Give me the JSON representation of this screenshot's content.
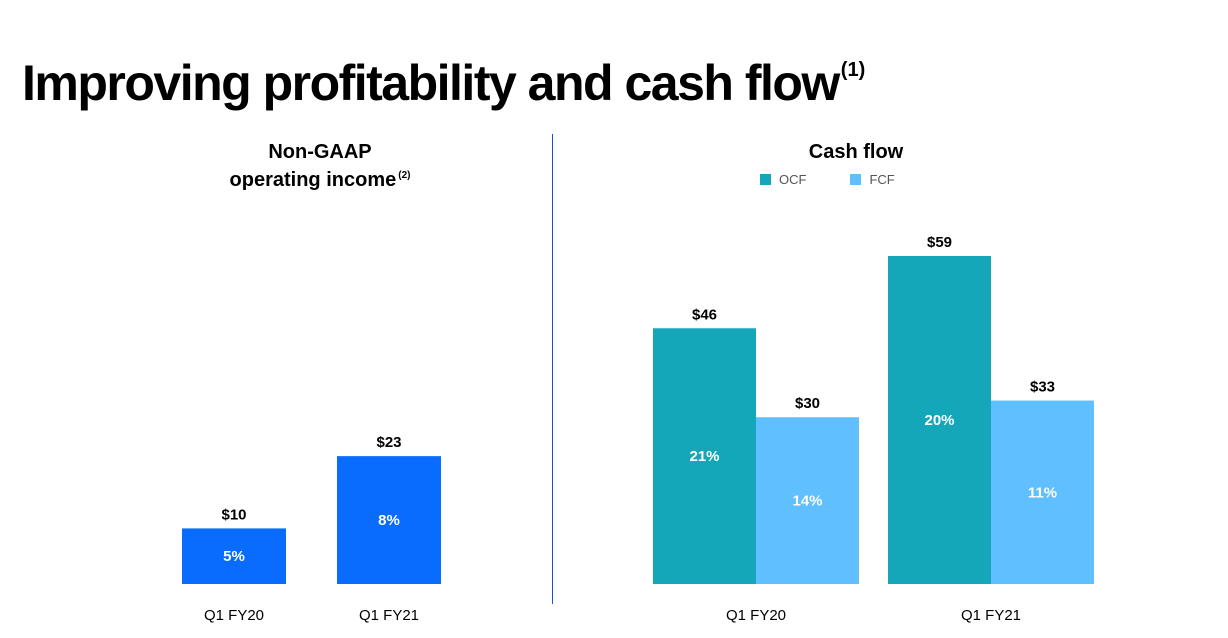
{
  "page": {
    "title": "Improving profitability and cash flow",
    "title_note": "(1)"
  },
  "chart_data": [
    {
      "type": "bar",
      "title_line1": "Non-GAAP",
      "title_line2": "operating income",
      "title_note": "(2)",
      "categories": [
        "Q1 FY20",
        "Q1 FY21"
      ],
      "series": [
        {
          "values": [
            10,
            23
          ],
          "value_labels": [
            "$10",
            "$23"
          ],
          "inner_labels": [
            "5%",
            "8%"
          ],
          "color": "#0a6cff"
        }
      ],
      "ylim": [
        0,
        60
      ]
    },
    {
      "type": "bar",
      "title": "Cash flow",
      "legend_position": "top",
      "categories": [
        "Q1 FY20",
        "Q1 FY21"
      ],
      "series": [
        {
          "name": "OCF",
          "values": [
            46,
            59
          ],
          "value_labels": [
            "$46",
            "$59"
          ],
          "inner_labels": [
            "21%",
            "20%"
          ],
          "color": "#13a7b9"
        },
        {
          "name": "FCF",
          "values": [
            30,
            33
          ],
          "value_labels": [
            "$30",
            "$33"
          ],
          "inner_labels": [
            "14%",
            "11%"
          ],
          "color": "#5fbfff"
        }
      ],
      "ylim": [
        0,
        60
      ]
    }
  ]
}
